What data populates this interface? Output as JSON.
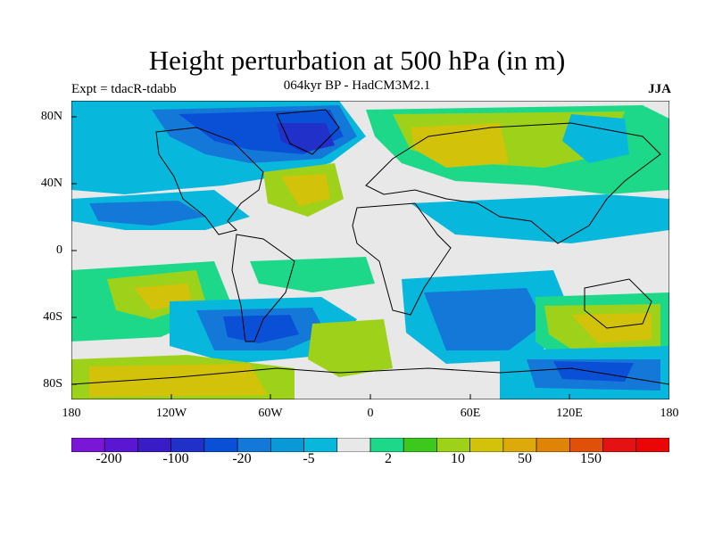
{
  "header": {
    "title": "Height perturbation at 500 hPa (in m)",
    "subtitle": "064kyr BP - HadCM3M2.1",
    "left_label": "Expt = tdacR-tdabb",
    "right_label": "JJA"
  },
  "map": {
    "lat_labels": [
      "80N",
      "40N",
      "0",
      "40S",
      "80S"
    ],
    "lon_labels": [
      "180",
      "120W",
      "60W",
      "0",
      "60E",
      "120E",
      "180"
    ]
  },
  "colorbar": {
    "colors": [
      "#7a16d6",
      "#5a16d0",
      "#3a1cc6",
      "#2030c8",
      "#0a50d6",
      "#1478d8",
      "#0a98d6",
      "#08b8dc",
      "#e8e8e8",
      "#1ed88a",
      "#3cc81c",
      "#9ed21a",
      "#d2c20a",
      "#dcaa0a",
      "#e08408",
      "#e05008",
      "#e41212",
      "#ea0606"
    ],
    "labels": [
      "-200",
      "-100",
      "-20",
      "-5",
      "2",
      "10",
      "50",
      "150"
    ]
  },
  "palette": {
    "deep_blue": "#2030c8",
    "blue": "#0a50d6",
    "light_blue": "#1478d8",
    "cyan": "#08b8dc",
    "neutral": "#e8e8e8",
    "green": "#1ed88a",
    "lime": "#9ed21a",
    "yellow": "#d2c20a",
    "orange": "#dcaa0a"
  }
}
